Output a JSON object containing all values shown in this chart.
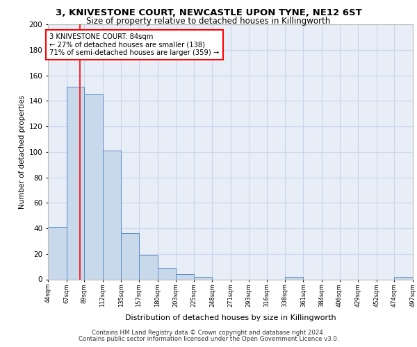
{
  "title_line1": "3, KNIVESTONE COURT, NEWCASTLE UPON TYNE, NE12 6ST",
  "title_line2": "Size of property relative to detached houses in Killingworth",
  "xlabel": "Distribution of detached houses by size in Killingworth",
  "ylabel": "Number of detached properties",
  "footnote1": "Contains HM Land Registry data © Crown copyright and database right 2024.",
  "footnote2": "Contains public sector information licensed under the Open Government Licence v3.0.",
  "property_size": 84,
  "annotation_line1": "3 KNIVESTONE COURT: 84sqm",
  "annotation_line2": "← 27% of detached houses are smaller (138)",
  "annotation_line3": "71% of semi-detached houses are larger (359) →",
  "bar_edges": [
    44,
    67,
    89,
    112,
    135,
    157,
    180,
    203,
    225,
    248,
    271,
    293,
    316,
    338,
    361,
    384,
    406,
    429,
    452,
    474,
    497
  ],
  "bar_heights": [
    41,
    151,
    145,
    101,
    36,
    19,
    9,
    4,
    2,
    0,
    0,
    0,
    0,
    2,
    0,
    0,
    0,
    0,
    0,
    2
  ],
  "bar_color": "#c9d9ec",
  "bar_edge_color": "#5b8ac5",
  "red_line_x": 84,
  "ylim": [
    0,
    200
  ],
  "yticks": [
    0,
    20,
    40,
    60,
    80,
    100,
    120,
    140,
    160,
    180,
    200
  ],
  "bg_color": "#e8eef8",
  "grid_color": "#c8d4e8",
  "title_fontsize": 9.5,
  "subtitle_fontsize": 8.5
}
